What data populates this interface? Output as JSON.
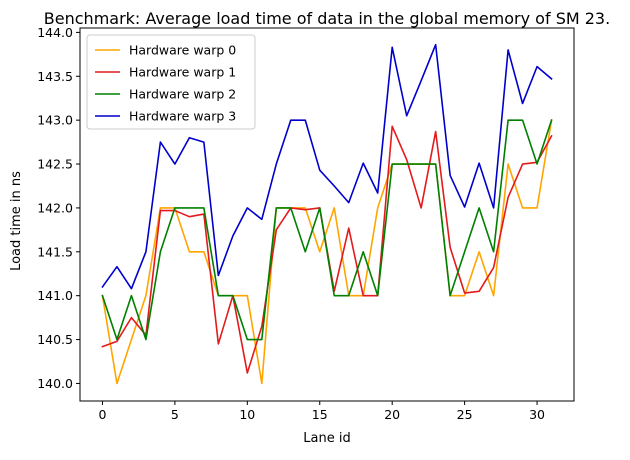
{
  "chart_data": {
    "type": "line",
    "title": "Benchmark: Average load time of data in the global memory of SM 23.",
    "xlabel": "Lane id",
    "ylabel": "Load time in ns",
    "xlim": [
      -1.55,
      32.55
    ],
    "ylim": [
      139.8,
      144.05
    ],
    "xticks": [
      0,
      5,
      10,
      15,
      20,
      25,
      30
    ],
    "xtick_labels": [
      "0",
      "5",
      "10",
      "15",
      "20",
      "25",
      "30"
    ],
    "yticks": [
      140.0,
      140.5,
      141.0,
      141.5,
      142.0,
      142.5,
      143.0,
      143.5,
      144.0
    ],
    "ytick_labels": [
      "140.0",
      "140.5",
      "141.0",
      "141.5",
      "142.0",
      "142.5",
      "143.0",
      "143.5",
      "144.0"
    ],
    "grid": false,
    "legend_position": "top-left",
    "x": [
      0,
      1,
      2,
      3,
      4,
      5,
      6,
      7,
      8,
      9,
      10,
      11,
      12,
      13,
      14,
      15,
      16,
      17,
      18,
      19,
      20,
      21,
      22,
      23,
      24,
      25,
      26,
      27,
      28,
      29,
      30,
      31
    ],
    "series": [
      {
        "name": "Hardware warp 0",
        "color": "#ffa500",
        "values": [
          141.0,
          140.0,
          140.5,
          141.0,
          142.0,
          142.0,
          141.5,
          141.5,
          141.0,
          141.0,
          141.0,
          140.0,
          142.0,
          142.0,
          142.0,
          141.5,
          142.0,
          141.0,
          141.0,
          142.0,
          142.5,
          142.5,
          142.5,
          142.5,
          141.0,
          141.0,
          141.5,
          141.0,
          142.5,
          142.0,
          142.0,
          143.0
        ]
      },
      {
        "name": "Hardware warp 1",
        "color": "#e41a1c",
        "values": [
          140.42,
          140.48,
          140.75,
          140.55,
          141.97,
          141.97,
          141.9,
          141.93,
          140.45,
          141.0,
          140.12,
          140.65,
          141.75,
          142.0,
          141.98,
          142.0,
          141.05,
          141.77,
          141.0,
          141.0,
          142.93,
          142.55,
          142.0,
          142.87,
          141.55,
          141.03,
          141.05,
          141.32,
          142.12,
          142.5,
          142.52,
          142.82
        ]
      },
      {
        "name": "Hardware warp 2",
        "color": "#008000",
        "values": [
          141.0,
          140.5,
          141.0,
          140.5,
          141.5,
          142.0,
          142.0,
          142.0,
          141.0,
          141.0,
          140.5,
          140.5,
          142.0,
          142.0,
          141.5,
          142.0,
          141.0,
          141.0,
          141.5,
          141.0,
          142.5,
          142.5,
          142.5,
          142.5,
          141.0,
          141.5,
          142.0,
          141.5,
          143.0,
          143.0,
          142.5,
          143.0
        ]
      },
      {
        "name": "Hardware warp 3",
        "color": "#0000cc",
        "values": [
          141.1,
          141.33,
          141.08,
          141.5,
          142.75,
          142.5,
          142.8,
          142.75,
          141.23,
          141.68,
          142.0,
          141.87,
          142.5,
          143.0,
          143.0,
          142.43,
          142.25,
          142.06,
          142.51,
          142.17,
          143.83,
          143.05,
          143.45,
          143.86,
          142.37,
          142.01,
          142.51,
          142.0,
          143.8,
          143.19,
          143.61,
          143.47
        ]
      }
    ]
  }
}
